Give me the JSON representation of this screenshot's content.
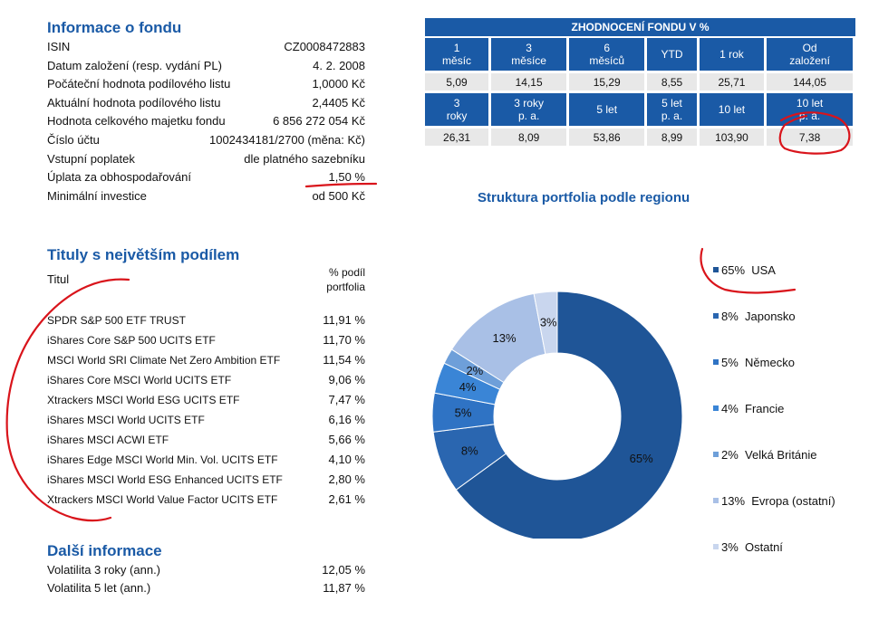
{
  "fund_info": {
    "title": "Informace o fondu",
    "rows": [
      {
        "label": "ISIN",
        "value": "CZ0008472883"
      },
      {
        "label": "Datum založení (resp. vydání PL)",
        "value": "4. 2. 2008"
      },
      {
        "label": "Počáteční hodnota podílového listu",
        "value": "1,0000 Kč"
      },
      {
        "label": "Aktuální hodnota podílového listu",
        "value": "2,4405 Kč"
      },
      {
        "label": "Hodnota celkového majetku fondu",
        "value": "6 856 272 054 Kč"
      },
      {
        "label": "Číslo účtu",
        "value": "1002434181/2700 (měna: Kč)"
      },
      {
        "label": "Vstupní poplatek",
        "value": "dle platného sazebníku"
      },
      {
        "label": "Úplata za obhospodařování",
        "value": "1,50 %"
      },
      {
        "label": "Minimální investice",
        "value": "od 500 Kč"
      }
    ]
  },
  "performance": {
    "title": "ZHODNOCENÍ FONDU V %",
    "headers1": [
      [
        "1",
        "měsíc"
      ],
      [
        "3",
        "měsíce"
      ],
      [
        "6",
        "měsíců"
      ],
      [
        "YTD"
      ],
      [
        "1 rok"
      ],
      [
        "Od",
        "založení"
      ]
    ],
    "values1": [
      "5,09",
      "14,15",
      "15,29",
      "8,55",
      "25,71",
      "144,05"
    ],
    "headers2": [
      [
        "3",
        "roky"
      ],
      [
        "3 roky",
        "p. a."
      ],
      [
        "5 let"
      ],
      [
        "5 let",
        "p. a."
      ],
      [
        "10 let"
      ],
      [
        "10 let",
        "p. a."
      ]
    ],
    "values2": [
      "26,31",
      "8,09",
      "53,86",
      "8,99",
      "103,90",
      "7,38"
    ]
  },
  "holdings": {
    "title": "Tituly s největším podílem",
    "col_name": "Titul",
    "col_share": [
      "% podíl",
      "portfolia"
    ],
    "rows": [
      {
        "name": "SPDR S&P 500 ETF TRUST",
        "share": "11,91 %"
      },
      {
        "name": "iShares Core S&P 500 UCITS ETF",
        "share": "11,70 %"
      },
      {
        "name": "MSCI World SRI Climate Net Zero Ambition ETF",
        "share": "11,54 %"
      },
      {
        "name": "iShares Core MSCI World UCITS ETF",
        "share": "9,06 %"
      },
      {
        "name": "Xtrackers MSCI World ESG UCITS ETF",
        "share": "7,47 %"
      },
      {
        "name": "iShares MSCI World UCITS ETF",
        "share": "6,16 %"
      },
      {
        "name": "iShares MSCI ACWI ETF",
        "share": "5,66 %"
      },
      {
        "name": "iShares Edge MSCI World Min. Vol. UCITS ETF",
        "share": "4,10 %"
      },
      {
        "name": "iShares MSCI World ESG Enhanced UCITS ETF",
        "share": "2,80 %"
      },
      {
        "name": "Xtrackers MSCI World Value Factor UCITS ETF",
        "share": "2,61 %"
      }
    ]
  },
  "more_info": {
    "title": "Další informace",
    "rows": [
      {
        "label": "Volatilita 3 roky (ann.)",
        "value": "12,05 %"
      },
      {
        "label": "Volatilita 5 let (ann.)",
        "value": "11,87 %"
      }
    ]
  },
  "chart_data": {
    "type": "pie",
    "title": "Struktura portfolia podle regionu",
    "categories": [
      "USA",
      "Japonsko",
      "Německo",
      "Francie",
      "Velká Británie",
      "Evropa (ostatní)",
      "Ostatní"
    ],
    "values": [
      65,
      8,
      5,
      4,
      2,
      13,
      3
    ],
    "labels": [
      "65%",
      "8%",
      "5%",
      "4%",
      "2%",
      "13%",
      "3%"
    ],
    "colors": [
      "#1f5597",
      "#2a66b0",
      "#2f73c4",
      "#3a85d6",
      "#6e9fd9",
      "#a9c0e6",
      "#c9d6ee"
    ],
    "legend": [
      "65%  USA",
      "8%  Japonsko",
      "5%  Německo",
      "4%  Francie",
      "2%  Velká Británie",
      "13%  Evropa (ostatní)",
      "3%  Ostatní"
    ],
    "legend_position": "right",
    "donut": true
  }
}
